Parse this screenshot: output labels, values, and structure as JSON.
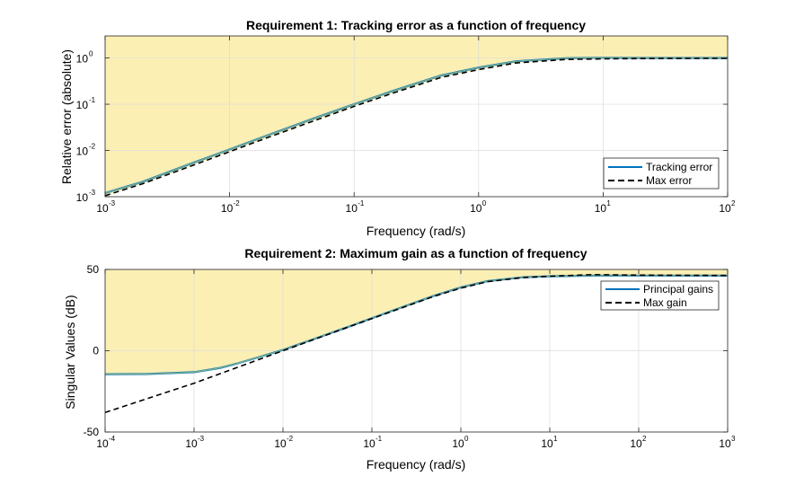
{
  "colors": {
    "shade": "#fbefb4",
    "tracking": "#0072bd",
    "green_overlay": "#7fb08d",
    "maxline": "#000000",
    "grid": "#dcdcdc",
    "axis": "#262626"
  },
  "chart_data": [
    {
      "type": "line",
      "title": "Requirement 1: Tracking error as a function of frequency",
      "xlabel": "Frequency (rad/s)",
      "ylabel": "Relative error (absolute)",
      "xscale": "log",
      "yscale": "log",
      "xlim": [
        0.001,
        100
      ],
      "ylim": [
        0.001,
        3
      ],
      "xticks": [
        {
          "value": 0.001,
          "base": "10",
          "exp": "-3"
        },
        {
          "value": 0.01,
          "base": "10",
          "exp": "-2"
        },
        {
          "value": 0.1,
          "base": "10",
          "exp": "-1"
        },
        {
          "value": 1,
          "base": "10",
          "exp": "0"
        },
        {
          "value": 10,
          "base": "10",
          "exp": "1"
        },
        {
          "value": 100,
          "base": "10",
          "exp": "2"
        }
      ],
      "yticks": [
        {
          "value": 0.001,
          "base": "10",
          "exp": "-3"
        },
        {
          "value": 0.01,
          "base": "10",
          "exp": "-2"
        },
        {
          "value": 0.1,
          "base": "10",
          "exp": "-1"
        },
        {
          "value": 1,
          "base": "10",
          "exp": "0"
        }
      ],
      "grid": true,
      "legend_position": "bottom-right",
      "shaded_region": "above Max error curve",
      "series": [
        {
          "name": "Tracking error",
          "style": "solid",
          "x": [
            0.001,
            0.002,
            0.005,
            0.01,
            0.02,
            0.05,
            0.1,
            0.2,
            0.5,
            1,
            2,
            5,
            10,
            20,
            50,
            100
          ],
          "y": [
            0.0012,
            0.0021,
            0.0053,
            0.0105,
            0.021,
            0.052,
            0.1,
            0.19,
            0.42,
            0.62,
            0.85,
            0.99,
            1.01,
            1.0,
            1.0,
            1.0
          ]
        },
        {
          "name": "Max error",
          "style": "dashed",
          "x": [
            0.001,
            0.002,
            0.005,
            0.01,
            0.02,
            0.05,
            0.1,
            0.2,
            0.5,
            1,
            2,
            5,
            10,
            20,
            50,
            100
          ],
          "y": [
            0.00105,
            0.0019,
            0.0047,
            0.0094,
            0.0188,
            0.046,
            0.09,
            0.17,
            0.38,
            0.56,
            0.78,
            0.93,
            0.96,
            0.97,
            0.98,
            0.98
          ]
        }
      ]
    },
    {
      "type": "line",
      "title": "Requirement 2: Maximum gain as a function of frequency",
      "xlabel": "Frequency (rad/s)",
      "ylabel": "Singular Values (dB)",
      "xscale": "log",
      "yscale": "linear",
      "xlim": [
        0.0001,
        1000
      ],
      "ylim": [
        -50,
        50
      ],
      "xticks": [
        {
          "value": 0.0001,
          "base": "10",
          "exp": "-4"
        },
        {
          "value": 0.001,
          "base": "10",
          "exp": "-3"
        },
        {
          "value": 0.01,
          "base": "10",
          "exp": "-2"
        },
        {
          "value": 0.1,
          "base": "10",
          "exp": "-1"
        },
        {
          "value": 1,
          "base": "10",
          "exp": "0"
        },
        {
          "value": 10,
          "base": "10",
          "exp": "1"
        },
        {
          "value": 100,
          "base": "10",
          "exp": "2"
        },
        {
          "value": 1000,
          "base": "10",
          "exp": "3"
        }
      ],
      "yticks": [
        {
          "value": -50,
          "label": "-50"
        },
        {
          "value": 0,
          "label": "0"
        },
        {
          "value": 50,
          "label": "50"
        }
      ],
      "grid": true,
      "legend_position": "top-right",
      "shaded_region": "above Principal gains curve",
      "series": [
        {
          "name": "Principal gains",
          "style": "solid",
          "x": [
            0.0001,
            0.0003,
            0.001,
            0.002,
            0.003,
            0.005,
            0.01,
            0.02,
            0.05,
            0.1,
            0.2,
            0.5,
            1,
            2,
            5,
            10,
            30,
            100,
            1000
          ],
          "y": [
            -14.5,
            -14.3,
            -13.2,
            -10.5,
            -8.0,
            -4.4,
            0.5,
            6.3,
            14.0,
            20.0,
            26.0,
            33.8,
            39.0,
            42.8,
            45.2,
            45.8,
            46.2,
            46.2,
            46.2
          ]
        },
        {
          "name": "Max gain",
          "style": "dashed",
          "x": [
            0.0001,
            0.001,
            0.01,
            0.1,
            0.5,
            1,
            2,
            5,
            10,
            30,
            100,
            1000
          ],
          "y": [
            -38.0,
            -20.0,
            0.0,
            19.8,
            33.5,
            38.5,
            42.5,
            45.0,
            45.8,
            46.8,
            46.5,
            46.3
          ]
        }
      ]
    }
  ]
}
